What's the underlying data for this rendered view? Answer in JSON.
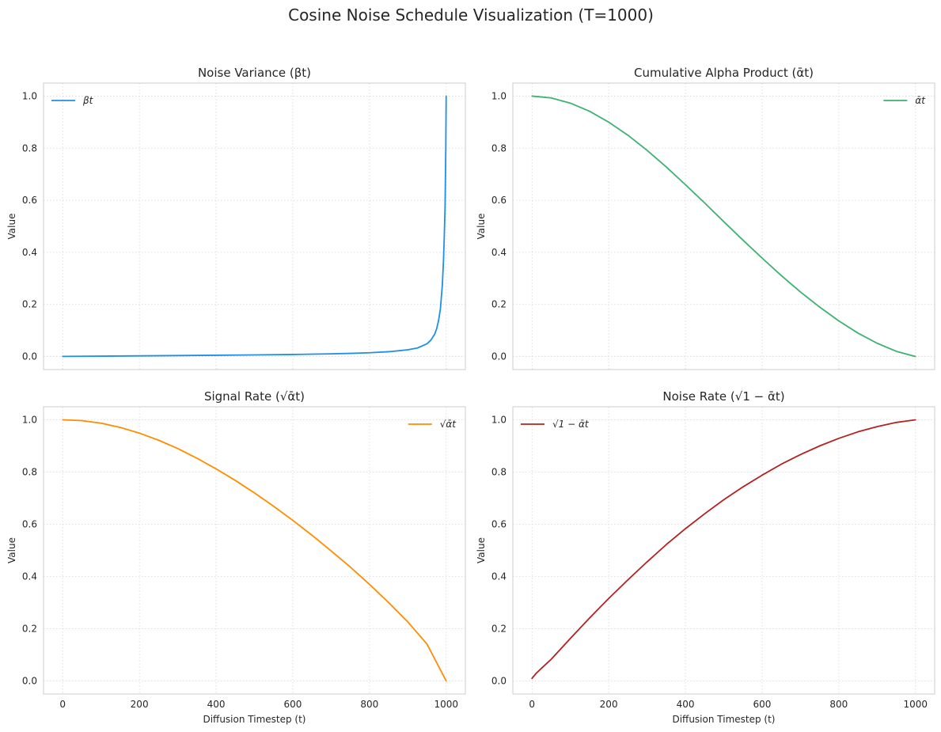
{
  "figure": {
    "title": "Cosine Noise Schedule Visualization (T=1000)"
  },
  "chart_data": [
    {
      "type": "line",
      "title": "Noise Variance (βt)",
      "xlabel": "",
      "ylabel": "Value",
      "xlim": [
        -50,
        1050
      ],
      "ylim": [
        -0.05,
        1.05
      ],
      "xticks": [],
      "yticks": [
        0.0,
        0.2,
        0.4,
        0.6,
        0.8,
        1.0
      ],
      "ytick_labels": [
        "0.0",
        "0.2",
        "0.4",
        "0.6",
        "0.8",
        "1.0"
      ],
      "grid": true,
      "legend": "upper left",
      "series": [
        {
          "name": "βt",
          "color": "#1f8fe8",
          "x": [
            0,
            100,
            200,
            300,
            400,
            500,
            600,
            700,
            750,
            800,
            850,
            900,
            925,
            950,
            960,
            970,
            975,
            980,
            985,
            990,
            993,
            995,
            997,
            999,
            1000
          ],
          "y": [
            0.0004,
            0.0015,
            0.0026,
            0.0037,
            0.0049,
            0.0062,
            0.0079,
            0.0103,
            0.0121,
            0.0146,
            0.0185,
            0.0258,
            0.0328,
            0.049,
            0.063,
            0.086,
            0.106,
            0.137,
            0.184,
            0.275,
            0.369,
            0.46,
            0.57,
            0.8,
            1.0
          ]
        }
      ]
    },
    {
      "type": "line",
      "title": "Cumulative Alpha Product (ᾱt)",
      "xlabel": "",
      "ylabel": "Value",
      "xlim": [
        -50,
        1050
      ],
      "ylim": [
        -0.05,
        1.05
      ],
      "xticks": [],
      "yticks": [
        0.0,
        0.2,
        0.4,
        0.6,
        0.8,
        1.0
      ],
      "ytick_labels": [
        "0.0",
        "0.2",
        "0.4",
        "0.6",
        "0.8",
        "1.0"
      ],
      "grid": true,
      "legend": "upper right",
      "series": [
        {
          "name": "ᾱt",
          "color": "#3cb371",
          "x": [
            0,
            50,
            100,
            150,
            200,
            250,
            300,
            350,
            400,
            450,
            500,
            550,
            600,
            650,
            700,
            750,
            800,
            850,
            900,
            950,
            1000
          ],
          "y": [
            1.0,
            0.993,
            0.973,
            0.942,
            0.9,
            0.85,
            0.792,
            0.728,
            0.66,
            0.59,
            0.518,
            0.447,
            0.378,
            0.311,
            0.248,
            0.19,
            0.137,
            0.09,
            0.051,
            0.02,
            0.0
          ]
        }
      ]
    },
    {
      "type": "line",
      "title": "Signal Rate (√ᾱt)",
      "xlabel": "Diffusion Timestep (t)",
      "ylabel": "Value",
      "xlim": [
        -50,
        1050
      ],
      "ylim": [
        -0.05,
        1.05
      ],
      "xticks": [
        0,
        200,
        400,
        600,
        800,
        1000
      ],
      "xtick_labels": [
        "0",
        "200",
        "400",
        "600",
        "800",
        "1000"
      ],
      "yticks": [
        0.0,
        0.2,
        0.4,
        0.6,
        0.8,
        1.0
      ],
      "ytick_labels": [
        "0.0",
        "0.2",
        "0.4",
        "0.6",
        "0.8",
        "1.0"
      ],
      "grid": true,
      "legend": "upper right",
      "series": [
        {
          "name": "√ᾱt",
          "color": "#ff8c00",
          "x": [
            0,
            50,
            100,
            150,
            200,
            250,
            300,
            350,
            400,
            450,
            500,
            550,
            600,
            650,
            700,
            750,
            800,
            850,
            900,
            950,
            1000
          ],
          "y": [
            1.0,
            0.997,
            0.987,
            0.971,
            0.949,
            0.922,
            0.89,
            0.853,
            0.812,
            0.768,
            0.72,
            0.669,
            0.615,
            0.558,
            0.498,
            0.436,
            0.37,
            0.3,
            0.226,
            0.141,
            0.0
          ]
        }
      ]
    },
    {
      "type": "line",
      "title": "Noise Rate (√1 − ᾱt)",
      "xlabel": "Diffusion Timestep (t)",
      "ylabel": "Value",
      "xlim": [
        -50,
        1050
      ],
      "ylim": [
        -0.05,
        1.05
      ],
      "xticks": [
        0,
        200,
        400,
        600,
        800,
        1000
      ],
      "xtick_labels": [
        "0",
        "200",
        "400",
        "600",
        "800",
        "1000"
      ],
      "yticks": [
        0.0,
        0.2,
        0.4,
        0.6,
        0.8,
        1.0
      ],
      "ytick_labels": [
        "0.0",
        "0.2",
        "0.4",
        "0.6",
        "0.8",
        "1.0"
      ],
      "grid": true,
      "legend": "upper left",
      "series": [
        {
          "name": "√1 − ᾱt",
          "color": "#b22222",
          "x": [
            0,
            10,
            25,
            50,
            100,
            150,
            200,
            250,
            300,
            350,
            400,
            450,
            500,
            550,
            600,
            650,
            700,
            750,
            800,
            850,
            900,
            950,
            1000
          ],
          "y": [
            0.01,
            0.028,
            0.049,
            0.083,
            0.163,
            0.241,
            0.316,
            0.387,
            0.456,
            0.522,
            0.583,
            0.64,
            0.694,
            0.743,
            0.788,
            0.83,
            0.867,
            0.9,
            0.929,
            0.954,
            0.974,
            0.99,
            1.0
          ]
        }
      ]
    }
  ]
}
